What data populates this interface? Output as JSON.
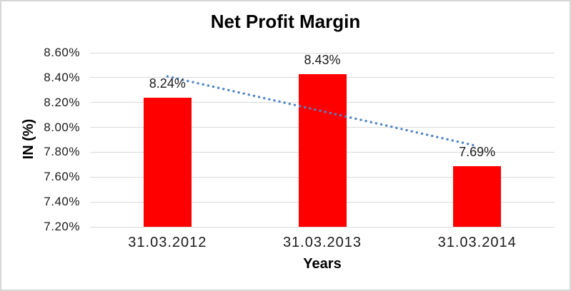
{
  "chart_data": {
    "type": "bar",
    "title": "Net Profit Margin",
    "xlabel": "Years",
    "ylabel": "IN (%)",
    "categories": [
      "31.03.2012",
      "31.03.2013",
      "31.03.2014"
    ],
    "values": [
      8.24,
      8.43,
      7.69
    ],
    "data_labels": [
      "8.24%",
      "8.43%",
      "7.69%"
    ],
    "y_ticks": [
      "8.60%",
      "8.40%",
      "8.20%",
      "8.00%",
      "7.80%",
      "7.60%",
      "7.40%",
      "7.20%"
    ],
    "ylim": [
      7.2,
      8.6
    ],
    "y_step": 0.2,
    "grid": true,
    "legend": "none",
    "bar_color": "#FF0000",
    "gridline_color": "#D9D9D9",
    "text_color": "#1A1A1A",
    "trendline": {
      "type": "linear",
      "style": "dotted",
      "color": "#4E86C8",
      "start_value": 8.41,
      "end_value": 7.85
    }
  }
}
